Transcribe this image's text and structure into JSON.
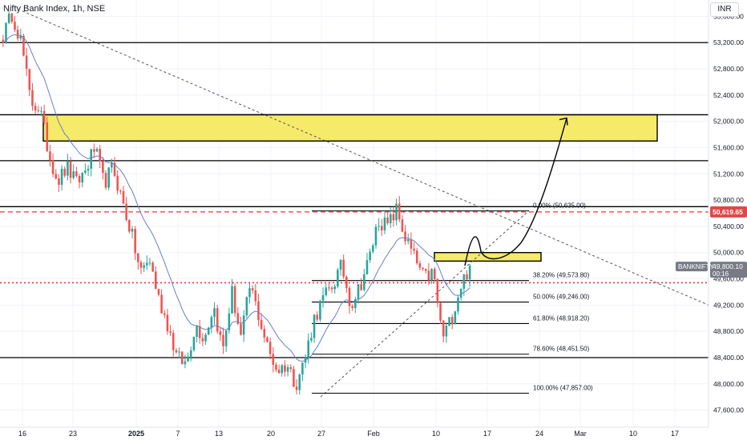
{
  "title": "Nifty Bank Index, 1h, NSE",
  "currency": "INR",
  "colors": {
    "up": "#26a69a",
    "down": "#ef5350",
    "ema": "#6a7dc9",
    "zone": "#f5ea6a",
    "level": "#000000",
    "dashed_red": "#e53935",
    "dotted_red": "#e53935",
    "badge_red": "#e04848",
    "badge_gray": "#787b86",
    "grid": "#f0f3fa"
  },
  "chart_data": {
    "type": "candlestick",
    "symbol": "BANKNIFTY",
    "timeframe": "1h",
    "exchange": "NSE",
    "ylim": [
      47400,
      53800
    ],
    "y_ticks": [
      {
        "value": 53600,
        "label": "53,600.00"
      },
      {
        "value": 53200,
        "label": "53,200.00"
      },
      {
        "value": 52800,
        "label": "52,800.00"
      },
      {
        "value": 52400,
        "label": "52,400.00"
      },
      {
        "value": 52000,
        "label": "52,000.00"
      },
      {
        "value": 51600,
        "label": "51,600.00"
      },
      {
        "value": 51200,
        "label": "51,200.00"
      },
      {
        "value": 50800,
        "label": "50,800.00"
      },
      {
        "value": 50400,
        "label": "50,400.00"
      },
      {
        "value": 50000,
        "label": "50,000.00"
      },
      {
        "value": 49600,
        "label": "49,600.00"
      },
      {
        "value": 49200,
        "label": "49,200.00"
      },
      {
        "value": 48800,
        "label": "48,800.00"
      },
      {
        "value": 48400,
        "label": "48,400.00"
      },
      {
        "value": 48000,
        "label": "48,000.00"
      },
      {
        "value": 47600,
        "label": "47,600.00"
      }
    ],
    "x_ticks": [
      {
        "label": "16",
        "bold": false
      },
      {
        "label": "23",
        "bold": false
      },
      {
        "label": "2025",
        "bold": true
      },
      {
        "label": "7",
        "bold": false
      },
      {
        "label": "13",
        "bold": false
      },
      {
        "label": "20",
        "bold": false
      },
      {
        "label": "27",
        "bold": false
      },
      {
        "label": "Feb",
        "bold": false
      },
      {
        "label": "10",
        "bold": false
      },
      {
        "label": "17",
        "bold": false
      },
      {
        "label": "24",
        "bold": false
      },
      {
        "label": "Mar",
        "bold": false
      },
      {
        "label": "10",
        "bold": false
      },
      {
        "label": "17",
        "bold": false
      }
    ],
    "price_anchors": [
      53300,
      53650,
      53200,
      52300,
      52200,
      51500,
      51100,
      51300,
      51050,
      51250,
      51600,
      51050,
      51300,
      50800,
      50300,
      49700,
      49900,
      49300,
      48900,
      48400,
      48300,
      48900,
      48700,
      49200,
      48500,
      49400,
      48700,
      49500,
      49000,
      48500,
      48200,
      48300,
      48000,
      48400,
      49000,
      49300,
      49500,
      49800,
      49200,
      49500,
      49900,
      50500,
      50400,
      50650,
      50200,
      49900,
      49600,
      49700,
      48700,
      49000,
      49500,
      49800
    ],
    "horizontal_levels": [
      53200,
      52100,
      51400,
      50700,
      48400
    ],
    "red_dashed_level": {
      "value": 50619.65,
      "label": "50,619.65"
    },
    "red_dotted_level": 49540,
    "current_price": {
      "value": 49800.1,
      "label": "49,800.10",
      "countdown": "00:16",
      "symbol": "BANKNIFTY"
    },
    "zones": [
      {
        "top": 52100,
        "bottom": 51700
      },
      {
        "top": 50000,
        "bottom": 49870
      }
    ],
    "fibonacci": {
      "levels": [
        {
          "ratio": 0.0,
          "price": 50635,
          "label": "0.00% (50,635.00)"
        },
        {
          "ratio": 0.382,
          "price": 49573.8,
          "label": "38.20% (49,573.80)"
        },
        {
          "ratio": 0.5,
          "price": 49246,
          "label": "50.00% (49,246.00)"
        },
        {
          "ratio": 0.618,
          "price": 48918.2,
          "label": "61.80% (48,918.20)"
        },
        {
          "ratio": 0.786,
          "price": 48451.5,
          "label": "78.60% (48,451.50)"
        },
        {
          "ratio": 1.0,
          "price": 47857,
          "label": "100.00% (47,857.00)"
        }
      ]
    },
    "projection_target": 52050
  }
}
